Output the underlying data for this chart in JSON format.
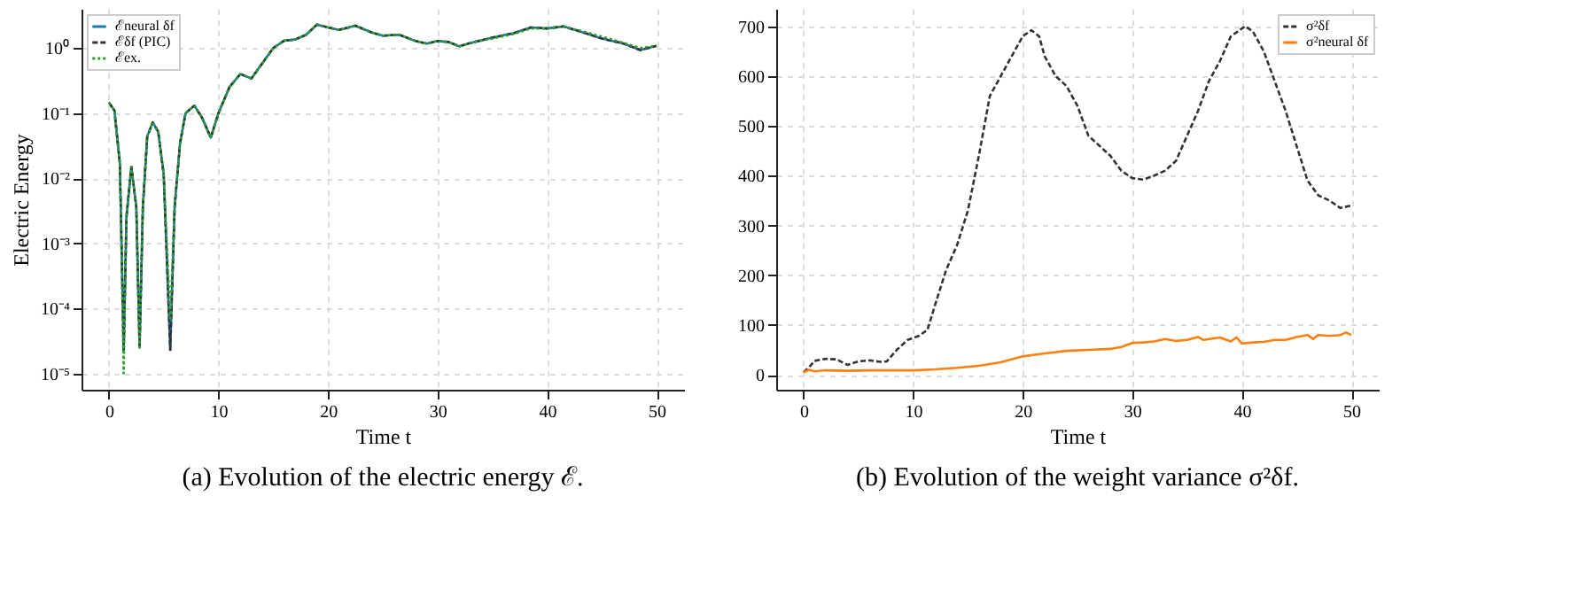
{
  "chart_data": [
    {
      "type": "line",
      "xlabel": "Time t",
      "ylabel": "Electric Energy",
      "log": "y",
      "grid": true,
      "legend": "top left",
      "annotations": [
        "(a) Evolution of the electric energy ℰ."
      ],
      "xlim": [
        -2.5,
        52.5
      ],
      "xticks": [
        0,
        10,
        20,
        30,
        40,
        50
      ],
      "ylim": [
        5.6e-06,
        4
      ],
      "yticks": [
        {
          "value": 1e-05,
          "label": "10⁻⁵"
        },
        {
          "value": 0.0001,
          "label": "10⁻⁴"
        },
        {
          "value": 0.001,
          "label": "10⁻³"
        },
        {
          "value": 0.01,
          "label": "10⁻²"
        },
        {
          "value": 0.1,
          "label": "10⁻¹"
        },
        {
          "value": 1,
          "label": "10⁰"
        }
      ],
      "x": [
        0,
        0.5,
        1,
        1.35,
        1.6,
        2.05,
        2.5,
        2.8,
        3.1,
        3.5,
        4,
        4.5,
        5,
        5.6,
        6,
        6.5,
        7,
        7.8,
        8.5,
        9.3,
        10,
        11,
        12,
        13,
        14,
        15,
        16,
        17,
        18,
        19,
        20,
        21,
        22.5,
        24,
        25,
        26.5,
        28,
        29,
        30,
        31,
        32,
        33,
        35,
        37,
        38.5,
        40,
        41.5,
        43,
        45,
        47,
        48.5,
        50
      ],
      "series": [
        {
          "name": "ℰneural δf",
          "color": "#1f77b4",
          "line_style": "solid",
          "values": [
            0.145,
            0.11,
            0.017,
            2.3e-05,
            0.0025,
            0.015,
            0.0036,
            2.5e-05,
            0.0036,
            0.044,
            0.072,
            0.052,
            0.0115,
            2.3e-05,
            0.0036,
            0.035,
            0.1,
            0.13,
            0.085,
            0.042,
            0.1,
            0.25,
            0.4,
            0.34,
            0.58,
            1.0,
            1.3,
            1.35,
            1.6,
            2.3,
            2.07,
            1.9,
            2.2,
            1.73,
            1.55,
            1.6,
            1.28,
            1.17,
            1.28,
            1.24,
            1.06,
            1.2,
            1.44,
            1.7,
            2.07,
            2.0,
            2.15,
            1.8,
            1.4,
            1.17,
            0.93,
            1.08
          ]
        },
        {
          "name": "ℰδf (PIC)",
          "color": "#333333",
          "line_style": "dashed",
          "values": [
            0.145,
            0.11,
            0.017,
            2.3e-05,
            0.0025,
            0.015,
            0.0036,
            2.5e-05,
            0.0036,
            0.044,
            0.072,
            0.052,
            0.0115,
            2.3e-05,
            0.0036,
            0.035,
            0.1,
            0.13,
            0.085,
            0.042,
            0.1,
            0.25,
            0.4,
            0.34,
            0.58,
            1.0,
            1.3,
            1.35,
            1.6,
            2.3,
            2.07,
            1.9,
            2.2,
            1.73,
            1.55,
            1.6,
            1.28,
            1.17,
            1.28,
            1.24,
            1.06,
            1.2,
            1.44,
            1.7,
            2.07,
            2.0,
            2.15,
            1.8,
            1.4,
            1.17,
            0.93,
            1.08
          ]
        },
        {
          "name": "ℰex.",
          "color": "#2ca02c",
          "line_style": "dotted",
          "values": [
            0.145,
            0.11,
            0.017,
            1e-05,
            0.0025,
            0.015,
            0.0036,
            2.5e-05,
            0.0036,
            0.044,
            0.072,
            0.052,
            0.0115,
            7e-05,
            0.0036,
            0.035,
            0.1,
            0.13,
            0.085,
            0.042,
            0.1,
            0.25,
            0.4,
            0.34,
            0.58,
            1.0,
            1.3,
            1.35,
            1.6,
            2.3,
            2.07,
            1.9,
            2.2,
            1.73,
            1.55,
            1.6,
            1.28,
            1.17,
            1.28,
            1.24,
            1.06,
            1.2,
            1.4,
            1.65,
            2.0,
            2.0,
            2.15,
            1.85,
            1.5,
            1.2,
            1.0,
            1.08
          ]
        }
      ]
    },
    {
      "type": "line",
      "xlabel": "Time t",
      "grid": true,
      "legend": "top right",
      "annotations": [
        "(b) Evolution of the weight variance σ²δf."
      ],
      "xlim": [
        -2.5,
        52.5
      ],
      "xticks": [
        0,
        10,
        20,
        30,
        40,
        50
      ],
      "ylim": [
        -30,
        735
      ],
      "yticks": [
        0,
        100,
        200,
        300,
        400,
        500,
        600,
        700
      ],
      "series": [
        {
          "name": "σ²δf",
          "color": "#333333",
          "line_style": "dashed",
          "x": [
            0,
            0.5,
            1,
            2,
            3,
            4,
            5,
            6,
            7,
            7.6,
            8.5,
            9.5,
            10.5,
            11.3,
            12,
            13,
            14,
            15,
            16,
            17,
            18,
            19,
            20,
            20.8,
            21.5,
            22,
            23,
            24,
            25,
            26,
            27,
            28,
            29,
            30,
            31,
            32,
            33,
            34,
            35,
            36,
            37,
            38,
            39,
            40.3,
            41,
            42,
            43,
            44,
            45,
            46,
            47,
            48,
            49,
            50
          ],
          "values": [
            5,
            15,
            28,
            32,
            31,
            20,
            27,
            29,
            26,
            27,
            50,
            70,
            78,
            90,
            140,
            210,
            260,
            330,
            440,
            560,
            600,
            640,
            680,
            692,
            680,
            640,
            600,
            580,
            540,
            480,
            460,
            440,
            410,
            395,
            392,
            400,
            410,
            430,
            480,
            530,
            590,
            630,
            680,
            700,
            690,
            650,
            590,
            530,
            460,
            390,
            360,
            350,
            335,
            340
          ]
        },
        {
          "name": "σ²neural δf",
          "color": "#ff7f0e",
          "line_style": "solid",
          "x": [
            0,
            0.5,
            1,
            2,
            4,
            6,
            8,
            10,
            12,
            14,
            16,
            18,
            20,
            22,
            24,
            26,
            28,
            29,
            30,
            31,
            32,
            33,
            34,
            35,
            36,
            36.5,
            38,
            39,
            39.5,
            40,
            41,
            42,
            43,
            44,
            45,
            46,
            46.5,
            47,
            48,
            49,
            49.5,
            50
          ],
          "values": [
            5,
            10,
            7,
            9,
            8,
            9,
            9,
            9,
            11,
            14,
            18,
            25,
            37,
            43,
            48,
            50,
            52,
            56,
            64,
            65,
            67,
            72,
            68,
            70,
            76,
            70,
            75,
            67,
            75,
            63,
            65,
            66,
            70,
            70,
            76,
            80,
            72,
            80,
            78,
            80,
            85,
            80
          ]
        }
      ]
    }
  ]
}
